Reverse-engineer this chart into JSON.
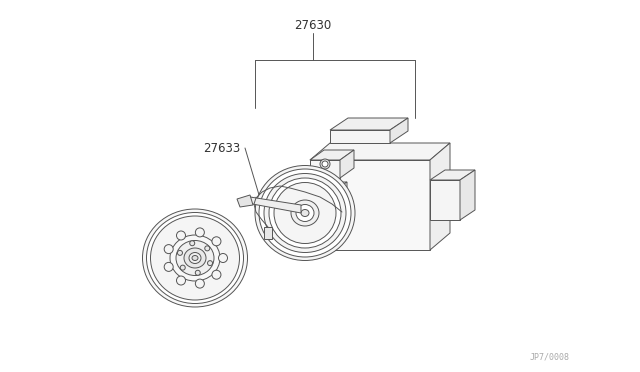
{
  "background_color": "#ffffff",
  "line_color": "#555555",
  "label_27630": "27630",
  "label_27633": "27633",
  "watermark": "JP7/0008",
  "fig_width": 6.4,
  "fig_height": 3.72,
  "dpi": 100,
  "lw": 0.7
}
